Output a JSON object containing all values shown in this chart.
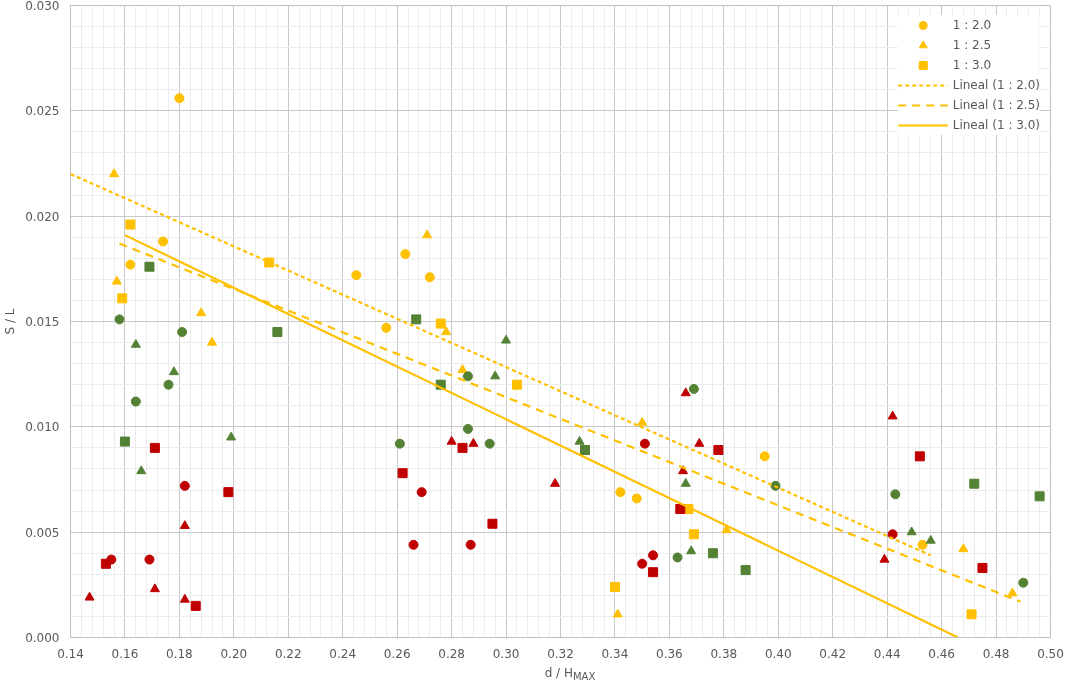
{
  "chart_data": {
    "type": "scatter",
    "xlabel": "d / H$_{MAX}$",
    "ylabel": "S / L",
    "xlim": [
      0.14,
      0.5
    ],
    "xticks": [
      0.14,
      0.16,
      0.18,
      {
        "value": 0.2,
        "label": "0.20"
      },
      0.22,
      0.24,
      0.26,
      0.28,
      {
        "value": 0.3,
        "label": "0.30"
      },
      0.32,
      0.34,
      0.36,
      0.38,
      {
        "value": 0.4,
        "label": "0.40"
      },
      0.42,
      0.44,
      0.46,
      0.48,
      {
        "value": 0.5,
        "label": "0.50"
      }
    ],
    "ylim": [
      0,
      0.03
    ],
    "yticks": [
      {
        "value": 0,
        "label": "0.000"
      },
      0.005,
      {
        "value": 0.01,
        "label": "0.010"
      },
      0.015,
      {
        "value": 0.02,
        "label": "0.020"
      },
      0.025,
      {
        "value": 0.03,
        "label": "0.030"
      }
    ],
    "grid": true,
    "legend": "top right",
    "series": [
      {
        "name": "1 : 2.0",
        "color": "#ffc000",
        "marker": "circle",
        "x": [
          0.18,
          0.174,
          0.162,
          0.245,
          0.263,
          0.272,
          0.256,
          0.342,
          0.348,
          0.395,
          0.453
        ],
        "values": [
          0.0256,
          0.0188,
          0.0177,
          0.0172,
          0.0182,
          0.0171,
          0.0147,
          0.0069,
          0.0066,
          0.0086,
          0.0044
        ]
      },
      {
        "name": "1 : 2.5",
        "color": "#ffc000",
        "marker": "triangle",
        "x": [
          0.156,
          0.157,
          0.188,
          0.192,
          0.271,
          0.278,
          0.284,
          0.35,
          0.341,
          0.381,
          0.468,
          0.486
        ],
        "values": [
          0.022,
          0.0169,
          0.0154,
          0.014,
          0.0191,
          0.0145,
          0.0127,
          0.0102,
          0.0011,
          0.0051,
          0.0042,
          0.0021
        ]
      },
      {
        "name": "1 : 3.0",
        "color": "#ffc000",
        "marker": "square",
        "x": [
          0.162,
          0.159,
          0.213,
          0.276,
          0.304,
          0.34,
          0.367,
          0.369,
          0.471
        ],
        "values": [
          0.0196,
          0.0161,
          0.0178,
          0.0149,
          0.012,
          0.0024,
          0.0061,
          0.0049,
          0.0011
        ]
      },
      {
        "color": "#548235",
        "marker": "circle",
        "x": [
          0.158,
          0.164,
          0.181,
          0.176,
          0.261,
          0.286,
          0.286,
          0.294,
          0.369,
          0.363,
          0.399,
          0.443,
          0.49
        ],
        "values": [
          0.0151,
          0.0112,
          0.0145,
          0.012,
          0.0092,
          0.0124,
          0.0099,
          0.0092,
          0.0118,
          0.0038,
          0.0072,
          0.0068,
          0.0026
        ]
      },
      {
        "color": "#548235",
        "marker": "triangle",
        "x": [
          0.164,
          0.178,
          0.166,
          0.199,
          0.3,
          0.296,
          0.327,
          0.366,
          0.368,
          0.449,
          0.456
        ],
        "values": [
          0.0139,
          0.0126,
          0.0079,
          0.0095,
          0.0141,
          0.0124,
          0.0093,
          0.0073,
          0.0041,
          0.005,
          0.0046
        ]
      },
      {
        "color": "#548235",
        "marker": "square",
        "x": [
          0.169,
          0.216,
          0.16,
          0.267,
          0.276,
          0.329,
          0.376,
          0.388,
          0.472,
          0.496
        ],
        "values": [
          0.0176,
          0.0145,
          0.0093,
          0.0151,
          0.012,
          0.0089,
          0.004,
          0.0032,
          0.0073,
          0.0067
        ]
      },
      {
        "color": "#c00000",
        "marker": "circle",
        "x": [
          0.155,
          0.169,
          0.182,
          0.269,
          0.266,
          0.287,
          0.351,
          0.35,
          0.354,
          0.442
        ],
        "values": [
          0.0037,
          0.0037,
          0.0072,
          0.0069,
          0.0044,
          0.0044,
          0.0092,
          0.0035,
          0.0039,
          0.0049
        ]
      },
      {
        "color": "#c00000",
        "marker": "triangle",
        "x": [
          0.147,
          0.171,
          0.182,
          0.182,
          0.28,
          0.288,
          0.318,
          0.366,
          0.365,
          0.371,
          0.442,
          0.439
        ],
        "values": [
          0.0019,
          0.0023,
          0.0053,
          0.0018,
          0.0093,
          0.0092,
          0.0073,
          0.0116,
          0.0079,
          0.0092,
          0.0105,
          0.0037
        ]
      },
      {
        "color": "#c00000",
        "marker": "square",
        "x": [
          0.153,
          0.171,
          0.186,
          0.198,
          0.262,
          0.284,
          0.295,
          0.354,
          0.364,
          0.378,
          0.452,
          0.475
        ],
        "values": [
          0.0035,
          0.009,
          0.0015,
          0.0069,
          0.0078,
          0.009,
          0.0054,
          0.0031,
          0.0061,
          0.0089,
          0.0086,
          0.0033
        ]
      },
      {
        "name": "Lineal (1 : 2.0)",
        "type": "line",
        "color": "#ffc000",
        "line_style": "dotted",
        "x": [
          0.14,
          0.456
        ],
        "values": [
          0.022,
          0.0039
        ]
      },
      {
        "name": "Lineal (1 : 2.5)",
        "type": "line",
        "color": "#ffc000",
        "line_style": "dashed",
        "x": [
          0.158,
          0.489
        ],
        "values": [
          0.0187,
          0.0017
        ]
      },
      {
        "name": "Lineal (1 : 3.0)",
        "type": "line",
        "color": "#ffc000",
        "line_style": "solid",
        "x": [
          0.16,
          0.466
        ],
        "values": [
          0.0191,
          0.0
        ]
      }
    ]
  }
}
